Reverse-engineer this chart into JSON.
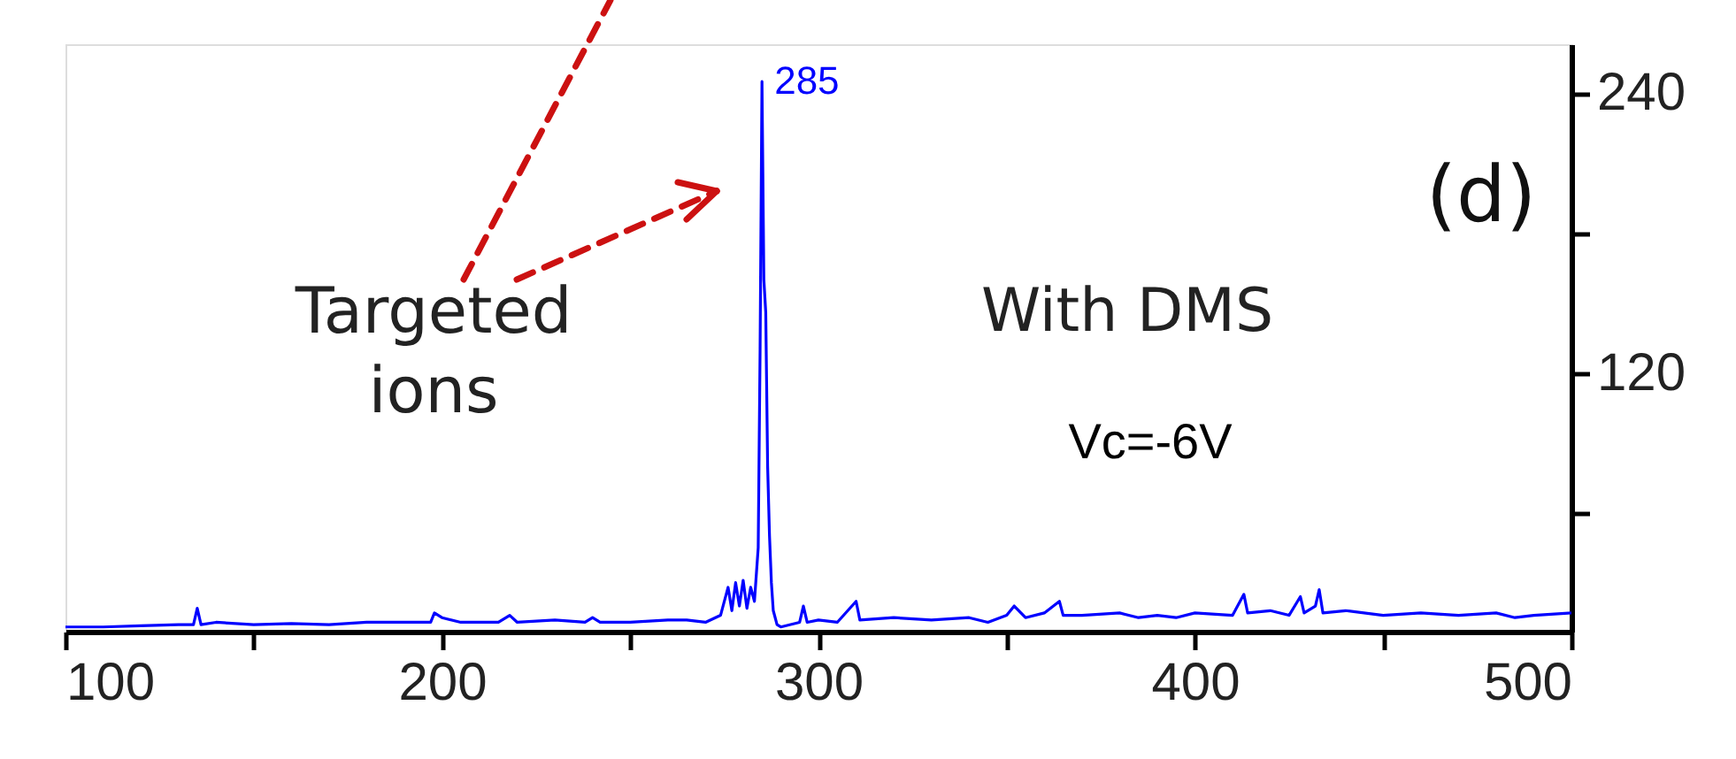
{
  "chart_data": {
    "type": "line",
    "xlim": [
      100,
      500
    ],
    "y2lim": [
      9,
      261
    ],
    "xticks": [
      100,
      {
        "value": 150,
        "label": null
      },
      200,
      {
        "value": 250,
        "label": null
      },
      300,
      {
        "value": 350,
        "label": null
      },
      400,
      {
        "value": 450,
        "label": null
      },
      500
    ],
    "y2ticks": [
      {
        "value": 60,
        "label": null
      },
      120,
      {
        "value": 180,
        "label": null
      },
      240
    ],
    "grid": false,
    "marker": "none",
    "line_style": "solid",
    "x": [
      100,
      110,
      120,
      130,
      134,
      135,
      136,
      140,
      150,
      160,
      170,
      180,
      190,
      197,
      198,
      200,
      205,
      215,
      218,
      220,
      230,
      238,
      240,
      242,
      250,
      260,
      265,
      270,
      274,
      276,
      277,
      278,
      279,
      280,
      281,
      282,
      283,
      284,
      284.5,
      285,
      285.5,
      286,
      286.5,
      287,
      287.5,
      288,
      289,
      290,
      295,
      296,
      297,
      300,
      305,
      310,
      311,
      320,
      330,
      340,
      345,
      350,
      352,
      355,
      360,
      364,
      365,
      370,
      380,
      385,
      390,
      395,
      400,
      410,
      413,
      414,
      420,
      425,
      428,
      429,
      432,
      433,
      434,
      440,
      450,
      460,
      470,
      480,
      485,
      490,
      500
    ],
    "series": [
      {
        "color": "#0000ff",
        "axis": "y2",
        "values": [
          11,
          11,
          11.5,
          12,
          12,
          19,
          12,
          13,
          12,
          12.5,
          12,
          13,
          13,
          13,
          17,
          15,
          13,
          13,
          16,
          13,
          14,
          13,
          15,
          13,
          13,
          14,
          14,
          13,
          16,
          28,
          18,
          30,
          20,
          31,
          19,
          28,
          22,
          45,
          130,
          245,
          160,
          146,
          80,
          50,
          30,
          18,
          12,
          11,
          13,
          20,
          13,
          14,
          13,
          22,
          14,
          15,
          14,
          15,
          13,
          16,
          20,
          15,
          17,
          22,
          16,
          16,
          17,
          15,
          16,
          15,
          17,
          16,
          25,
          17,
          18,
          16,
          24,
          17,
          20,
          27,
          17,
          18,
          16,
          17,
          16,
          17,
          15,
          16,
          17
        ]
      }
    ],
    "annotations": [
      "285",
      "(d)",
      "Targeted ions",
      "With DMS",
      "Vc=-6V"
    ]
  }
}
